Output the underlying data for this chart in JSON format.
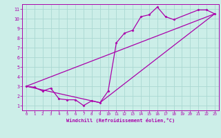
{
  "xlabel": "Windchill (Refroidissement éolien,°C)",
  "bg_color": "#cceee8",
  "grid_color": "#aad8d2",
  "line_color": "#aa00aa",
  "xlim": [
    -0.5,
    23.5
  ],
  "ylim": [
    0.5,
    11.5
  ],
  "xticks": [
    0,
    1,
    2,
    3,
    4,
    5,
    6,
    7,
    8,
    9,
    10,
    11,
    12,
    13,
    14,
    15,
    16,
    17,
    18,
    19,
    20,
    21,
    22,
    23
  ],
  "yticks": [
    1,
    2,
    3,
    4,
    5,
    6,
    7,
    8,
    9,
    10,
    11
  ],
  "series1_x": [
    0,
    1,
    2,
    3,
    4,
    5,
    6,
    7,
    8,
    9,
    10,
    11,
    12,
    13,
    14,
    15,
    16,
    17,
    18,
    21,
    22,
    23
  ],
  "series1_y": [
    3.0,
    2.9,
    2.5,
    2.8,
    1.7,
    1.6,
    1.6,
    1.0,
    1.5,
    1.3,
    2.5,
    7.5,
    8.5,
    8.8,
    10.2,
    10.4,
    11.2,
    10.2,
    9.9,
    10.9,
    10.9,
    10.5
  ],
  "series2_x": [
    0,
    23
  ],
  "series2_y": [
    3.0,
    10.5
  ],
  "series3_x": [
    0,
    9,
    23
  ],
  "series3_y": [
    3.0,
    1.3,
    10.5
  ]
}
